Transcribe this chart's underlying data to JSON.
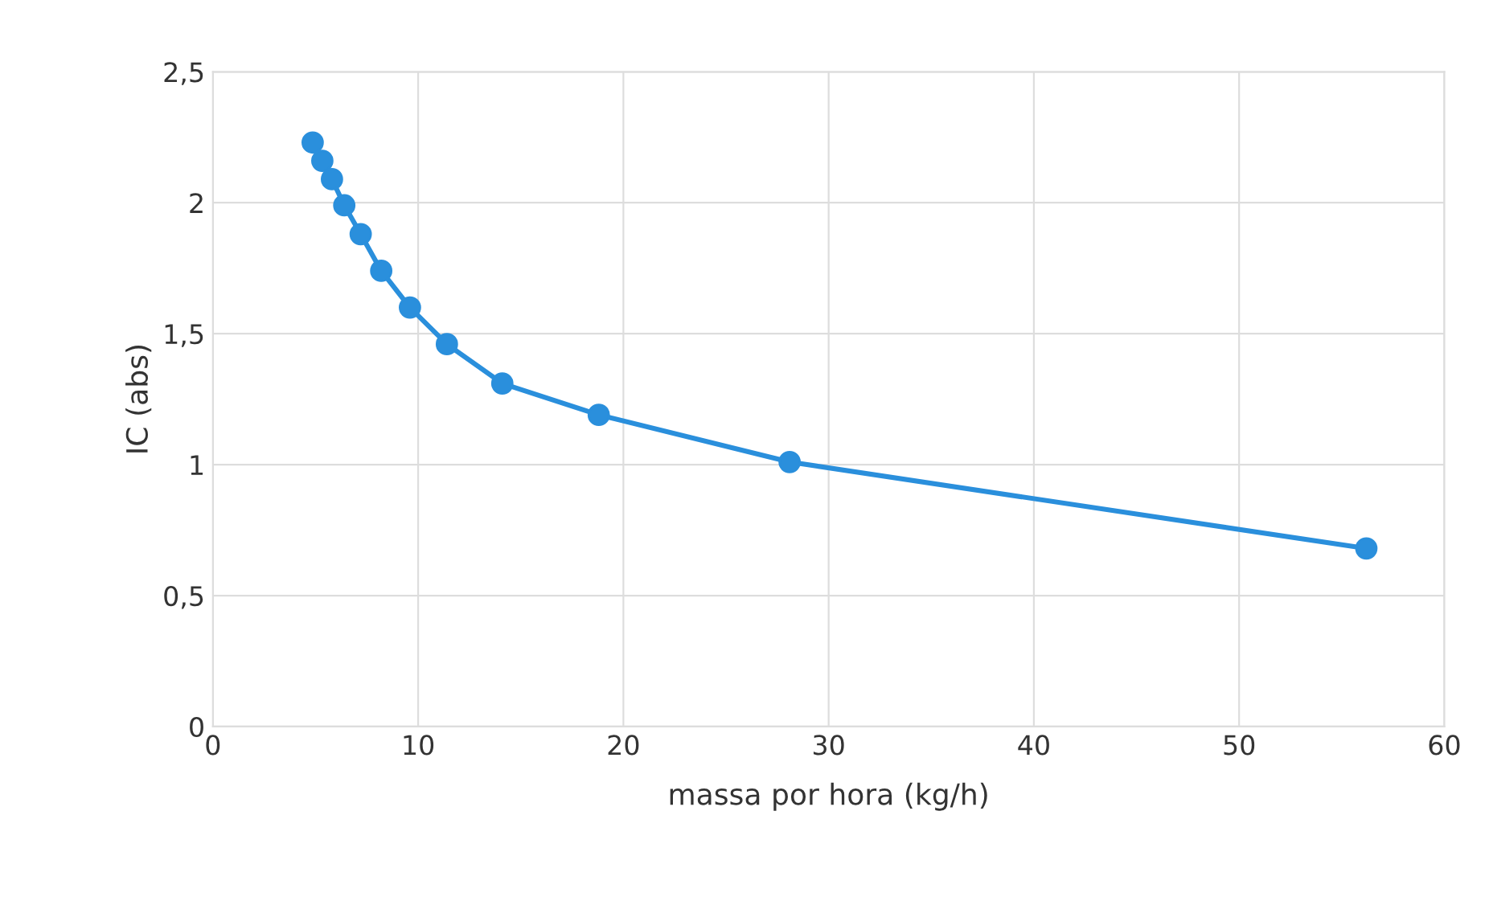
{
  "chart_data": {
    "type": "line",
    "xlabel": "massa por hora (kg/h)",
    "ylabel": "IC (abs)",
    "series": [
      {
        "color": "#2a8fdc",
        "x": [
          4.86,
          5.33,
          5.8,
          6.4,
          7.2,
          8.2,
          9.6,
          11.4,
          14.1,
          18.8,
          28.1,
          56.2
        ],
        "values": [
          2.23,
          2.16,
          2.09,
          1.99,
          1.88,
          1.74,
          1.6,
          1.46,
          1.31,
          1.19,
          1.01,
          0.68
        ]
      }
    ],
    "xlim": [
      0,
      60
    ],
    "xticks": [
      0,
      10,
      20,
      30,
      40,
      50,
      60
    ],
    "ylim": [
      0,
      2.5
    ],
    "yticks": [
      0,
      {
        "value": 0.5,
        "label": "0,5"
      },
      1,
      {
        "value": 1.5,
        "label": "1,5"
      },
      2,
      {
        "value": 2.5,
        "label": "2,5"
      }
    ],
    "grid": true,
    "marker": "circle",
    "line_style": "solid",
    "legend": false
  }
}
